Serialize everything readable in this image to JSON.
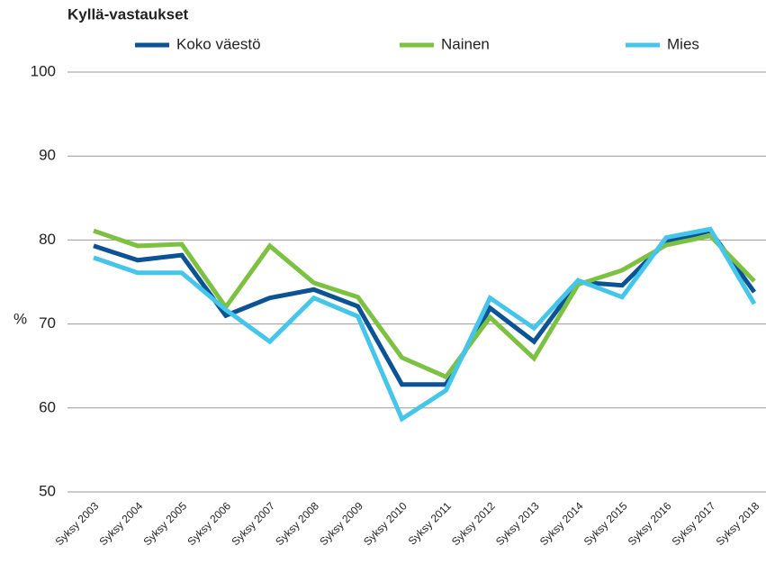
{
  "chart_data": {
    "type": "line",
    "title": "Kyllä-vastaukset",
    "ylabel": "%",
    "categories": [
      "Syksy 2003",
      "Syksy 2004",
      "Syksy 2005",
      "Syksy 2006",
      "Syksy 2007",
      "Syksy 2008",
      "Syksy 2009",
      "Syksy 2010",
      "Syksy 2011",
      "Syksy 2012",
      "Syksy 2013",
      "Syksy 2014",
      "Syksy 2015",
      "Syksy 2016",
      "Syksy 2017",
      "Syksy 2018"
    ],
    "series": [
      {
        "name": "Koko väestö",
        "color": "#0b5394",
        "values": [
          79.3,
          77.6,
          78.2,
          71.0,
          73.1,
          74.1,
          72.1,
          62.8,
          62.8,
          71.9,
          67.9,
          75.0,
          74.6,
          79.8,
          81.1,
          73.8
        ]
      },
      {
        "name": "Nainen",
        "color": "#7dc142",
        "values": [
          81.1,
          79.3,
          79.5,
          72.0,
          79.3,
          74.9,
          73.2,
          66.0,
          63.7,
          70.8,
          65.9,
          74.7,
          76.4,
          79.4,
          80.5,
          75.1
        ]
      },
      {
        "name": "Mies",
        "color": "#45c5ea",
        "values": [
          77.9,
          76.1,
          76.1,
          71.7,
          67.9,
          73.1,
          70.9,
          58.7,
          62.1,
          73.1,
          69.5,
          75.2,
          73.2,
          80.3,
          81.3,
          72.4
        ]
      }
    ],
    "ylim": [
      50,
      100
    ],
    "yticks": [
      50,
      60,
      70,
      80,
      90,
      100
    ],
    "grid": true
  }
}
